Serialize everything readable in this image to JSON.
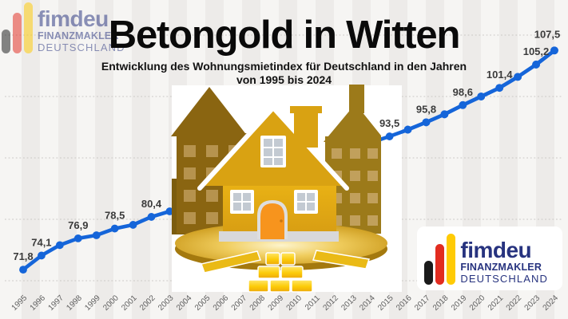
{
  "header": {
    "title": "Betongold in Witten",
    "subtitle_line1": "Entwicklung des Wohnungsmietindex für Deutschland in den Jahren",
    "subtitle_line2": "von 1995 bis 2024"
  },
  "logo": {
    "name": "fimdeu",
    "line1": "FINANZMAKLER",
    "line2": "DEUTSCHLAND",
    "navy": "#27337f",
    "bar_colors": [
      "#1a1a1a",
      "#e22c20",
      "#ffcb05"
    ]
  },
  "illustration": {
    "description": "golden house on a gold platter with gold ingots, dark golden buildings behind",
    "icons": [
      "golden-house-icon",
      "gold-bars-icon",
      "city-buildings-icon",
      "gold-platter-icon"
    ]
  },
  "chart_data": {
    "type": "line",
    "title": "Betongold in Witten",
    "subtitle": "Entwicklung des Wohnungsmietindex für Deutschland in den Jahren von 1995 bis 2024",
    "x": [
      1995,
      1996,
      1997,
      1998,
      1999,
      2000,
      2001,
      2002,
      2003,
      2004,
      2005,
      2006,
      2007,
      2008,
      2009,
      2010,
      2011,
      2012,
      2013,
      2014,
      2015,
      2016,
      2017,
      2018,
      2019,
      2020,
      2021,
      2022,
      2023,
      2024
    ],
    "values": [
      71.8,
      74.1,
      75.8,
      76.9,
      77.4,
      78.5,
      79.1,
      80.4,
      81.3,
      82.3,
      83.3,
      84.3,
      85.4,
      86.4,
      87.5,
      88.5,
      89.5,
      90.5,
      91.5,
      92.5,
      93.5,
      94.6,
      95.8,
      97.1,
      98.6,
      100.0,
      101.4,
      103.2,
      105.2,
      107.5
    ],
    "value_labels": {
      "1995": "71,8",
      "1996": "74,1",
      "1998": "76,9",
      "2000": "78,5",
      "2002": "80,4",
      "2015": "93,5",
      "2017": "95,8",
      "2019": "98,6",
      "2021": "101,4",
      "2023": "105,2",
      "2024": "107,5"
    },
    "years_hidden_by_illustration": [
      2004,
      2005,
      2006,
      2007,
      2008,
      2009,
      2010,
      2011,
      2012,
      2013,
      2014
    ],
    "ylim": [
      65,
      112
    ],
    "y_gridlines": [
      70,
      80,
      90,
      100,
      110
    ],
    "grid": "horizontal-dotted",
    "legend": "none",
    "line_color": "#1565d9",
    "marker_color": "#1565d9",
    "xlabel": "",
    "ylabel": ""
  }
}
